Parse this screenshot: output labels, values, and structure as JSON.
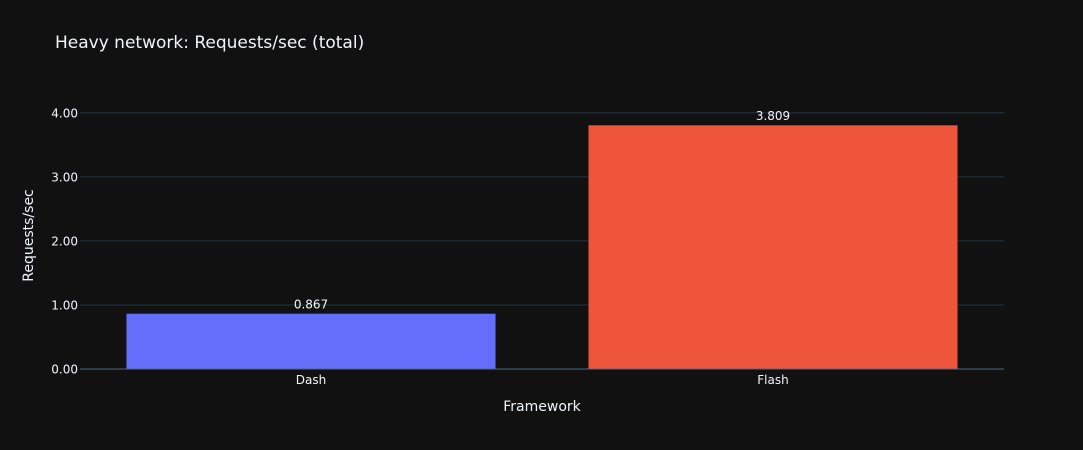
{
  "chart_data": {
    "type": "bar",
    "title": "Heavy network: Requests/sec (total)",
    "xlabel": "Framework",
    "ylabel": "Requests/sec",
    "categories": [
      "Dash",
      "Flash"
    ],
    "values": [
      0.867,
      3.809
    ],
    "data_labels": [
      "0.867",
      "3.809"
    ],
    "bar_colors": [
      "#636efa",
      "#ef553b"
    ],
    "ylim": [
      0,
      4.2
    ],
    "yticks": [
      0,
      1,
      2,
      3,
      4
    ],
    "ytick_labels": [
      "0.00",
      "1.00",
      "2.00",
      "3.00",
      "4.00"
    ],
    "grid": true,
    "legend": "none"
  },
  "theme": {
    "background": "#111111",
    "grid_color": "#283442",
    "text_color": "#f2f5fa"
  }
}
